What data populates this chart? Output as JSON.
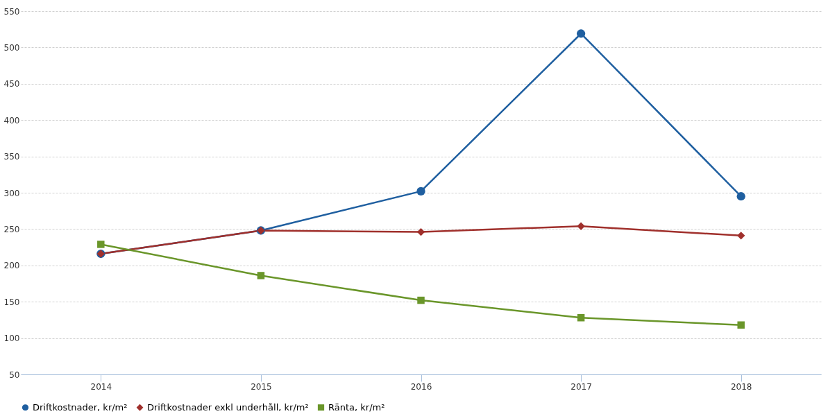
{
  "chart_data": {
    "type": "line",
    "categories": [
      "2014",
      "2015",
      "2016",
      "2017",
      "2018"
    ],
    "series": [
      {
        "name": "Driftkostnader, kr/m²",
        "color": "#1f5fa0",
        "marker": "circle",
        "values": [
          216,
          248,
          302,
          519,
          295
        ]
      },
      {
        "name": "Driftkostnader exkl underhåll, kr/m²",
        "color": "#a0302c",
        "marker": "diamond",
        "values": [
          216,
          248,
          246,
          254,
          241
        ]
      },
      {
        "name": "Ränta, kr/m²",
        "color": "#6a962a",
        "marker": "square",
        "values": [
          229,
          186,
          152,
          128,
          118
        ]
      }
    ],
    "ylim": [
      50,
      550
    ],
    "yticks": [
      50,
      100,
      150,
      200,
      250,
      300,
      350,
      400,
      450,
      500,
      550
    ],
    "grid": "y",
    "legend": "bottom",
    "line_style": "solid"
  }
}
